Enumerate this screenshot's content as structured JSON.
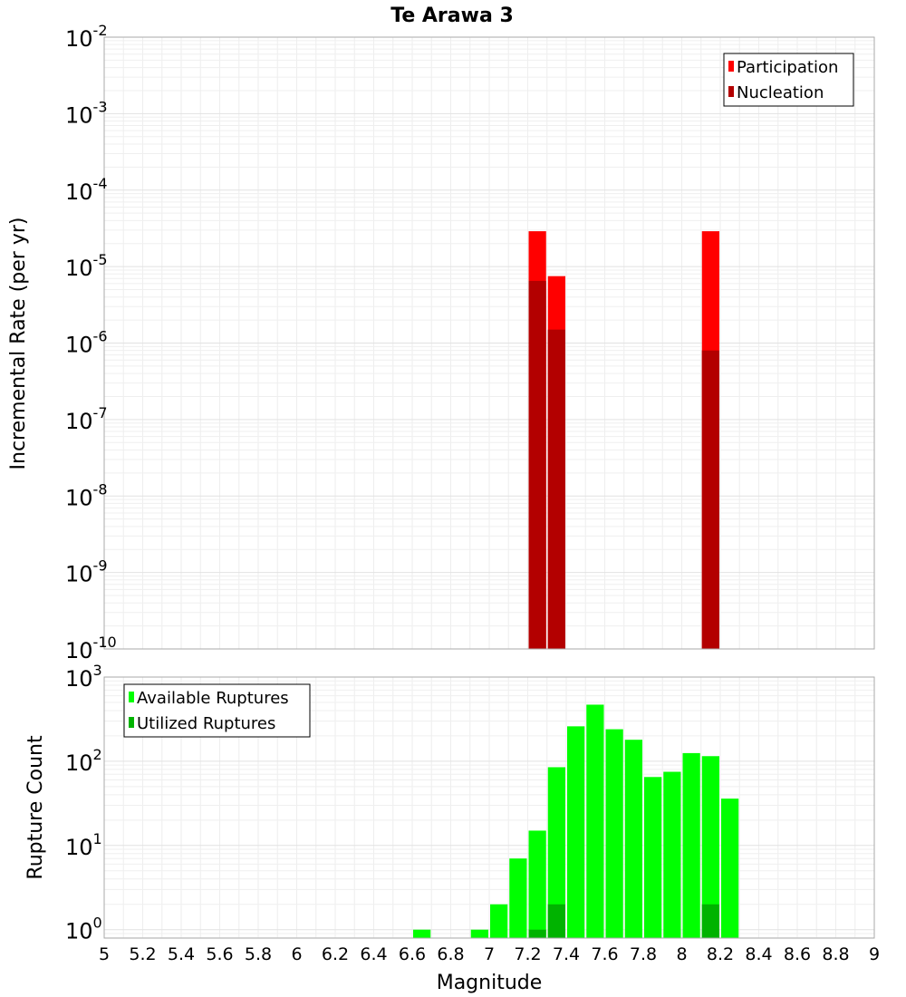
{
  "chart_data": {
    "title": "Te Arawa 3",
    "xlabel": "Magnitude",
    "xlim": [
      5,
      9
    ],
    "x_ticks": [
      "5",
      "5.2",
      "5.4",
      "5.6",
      "5.8",
      "6",
      "6.2",
      "6.4",
      "6.6",
      "6.8",
      "7",
      "7.2",
      "7.4",
      "7.6",
      "7.8",
      "8",
      "8.2",
      "8.4",
      "8.6",
      "8.8",
      "9"
    ],
    "x_tick_values": [
      5,
      5.2,
      5.4,
      5.6,
      5.8,
      6,
      6.2,
      6.4,
      6.6,
      6.8,
      7,
      7.2,
      7.4,
      7.6,
      7.8,
      8,
      8.2,
      8.4,
      8.6,
      8.8,
      9
    ],
    "bin_width": 0.1,
    "panels": [
      {
        "type": "bar",
        "scale": "log",
        "ylabel": "Incremental Rate (per yr)",
        "ylim_exponents": [
          -10,
          -2
        ],
        "y_ticks": [
          {
            "exp": -2,
            "base": "10",
            "sup": "-2"
          },
          {
            "exp": -3,
            "base": "10",
            "sup": "-3"
          },
          {
            "exp": -4,
            "base": "10",
            "sup": "-4"
          },
          {
            "exp": -5,
            "base": "10",
            "sup": "-5"
          },
          {
            "exp": -6,
            "base": "10",
            "sup": "-6"
          },
          {
            "exp": -7,
            "base": "10",
            "sup": "-7"
          },
          {
            "exp": -8,
            "base": "10",
            "sup": "-8"
          },
          {
            "exp": -9,
            "base": "10",
            "sup": "-9"
          },
          {
            "exp": -10,
            "base": "10",
            "sup": "-10"
          }
        ],
        "legend": {
          "position": "top-right",
          "entries": [
            {
              "label": "Participation",
              "color": "#ff0000"
            },
            {
              "label": "Nucleation",
              "color": "#b30000"
            }
          ]
        },
        "series": [
          {
            "name": "Participation",
            "color": "#ff0000",
            "x": [
              7.25,
              7.35,
              8.15
            ],
            "values": [
              2.9e-05,
              7.5e-06,
              2.9e-05
            ]
          },
          {
            "name": "Nucleation",
            "color": "#b30000",
            "x": [
              7.25,
              7.35,
              8.15
            ],
            "values": [
              6.5e-06,
              1.5e-06,
              8e-07
            ]
          }
        ]
      },
      {
        "type": "bar",
        "scale": "log",
        "ylabel": "Rupture Count",
        "ylim_exponents": [
          -0.1,
          3
        ],
        "y_ticks": [
          {
            "exp": 3,
            "base": "10",
            "sup": "3"
          },
          {
            "exp": 2,
            "base": "10",
            "sup": "2"
          },
          {
            "exp": 1,
            "base": "10",
            "sup": "1"
          },
          {
            "exp": 0,
            "base": "10",
            "sup": "0"
          }
        ],
        "legend": {
          "position": "top-left",
          "entries": [
            {
              "label": "Available Ruptures",
              "color": "#00ff00"
            },
            {
              "label": "Utilized Ruptures",
              "color": "#00b300"
            }
          ]
        },
        "series": [
          {
            "name": "Available Ruptures",
            "color": "#00ff00",
            "x": [
              6.65,
              6.95,
              7.05,
              7.15,
              7.25,
              7.35,
              7.45,
              7.55,
              7.65,
              7.75,
              7.85,
              7.95,
              8.05,
              8.15,
              8.25
            ],
            "values": [
              1,
              1,
              2,
              7,
              15,
              85,
              260,
              470,
              240,
              180,
              65,
              75,
              125,
              115,
              36
            ]
          },
          {
            "name": "Utilized Ruptures",
            "color": "#00b300",
            "x": [
              7.25,
              7.35,
              8.15
            ],
            "values": [
              1,
              2,
              2
            ]
          }
        ]
      }
    ]
  }
}
